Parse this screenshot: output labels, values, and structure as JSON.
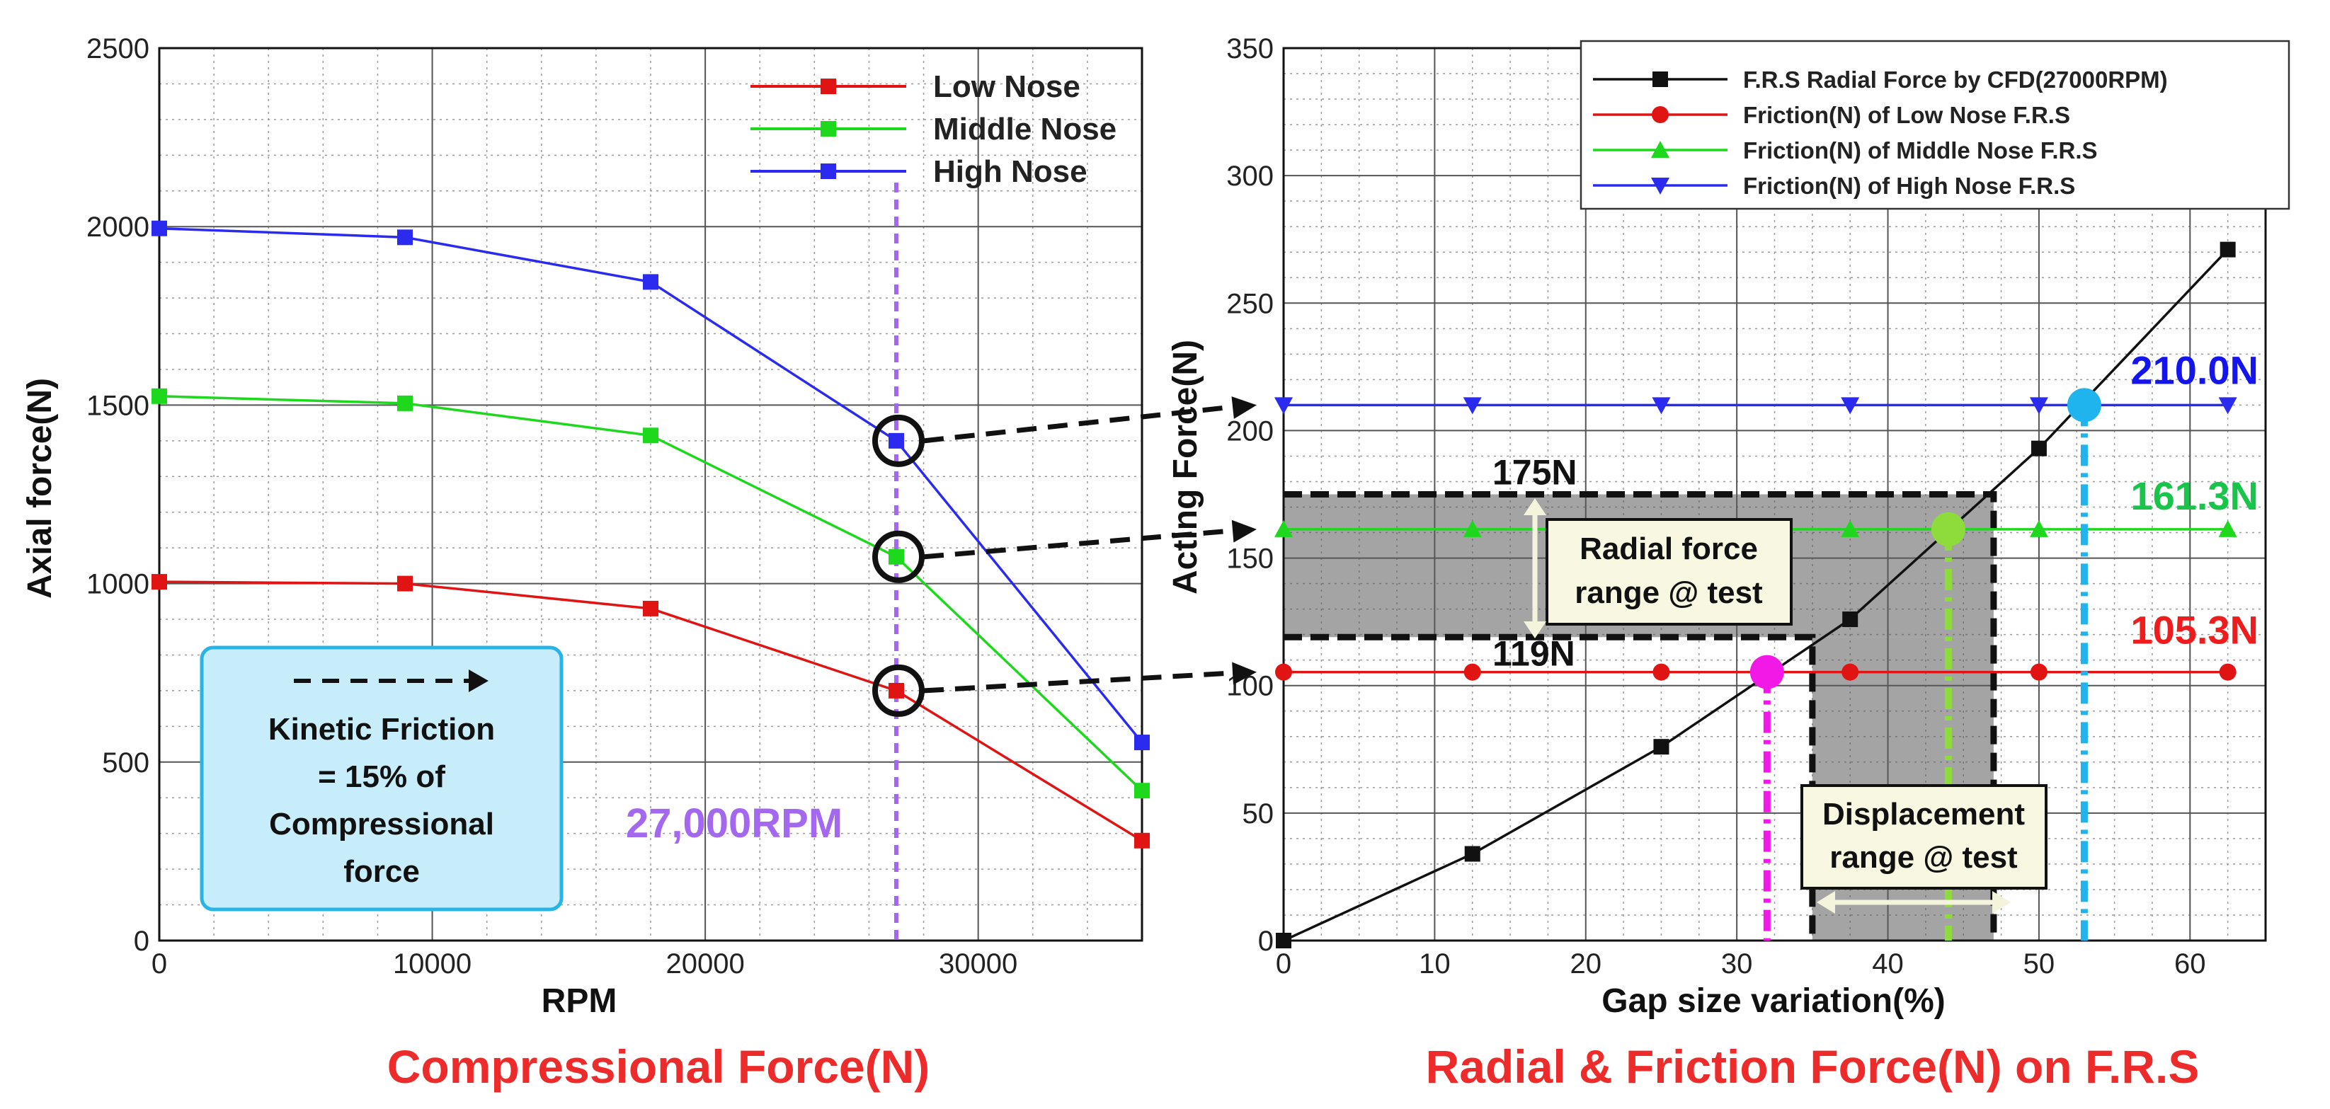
{
  "chart_data": [
    {
      "type": "line",
      "title": "Compressional Force(N)",
      "xlabel": "RPM",
      "ylabel": "Axial force(N)",
      "xlim": [
        0,
        36000
      ],
      "ylim": [
        0,
        2500
      ],
      "xticks": [
        0,
        10000,
        20000,
        30000
      ],
      "yticks": [
        0,
        500,
        1000,
        1500,
        2000,
        2500
      ],
      "grid": true,
      "legend_position": "top-right",
      "x": [
        0,
        9000,
        18000,
        27000,
        36000
      ],
      "series": [
        {
          "name": "Low Nose",
          "color": "#e11414",
          "marker": "square",
          "values": [
            1005,
            1000,
            930,
            700,
            280
          ]
        },
        {
          "name": "Middle Nose",
          "color": "#1ed81e",
          "marker": "square",
          "values": [
            1525,
            1505,
            1415,
            1075,
            420
          ]
        },
        {
          "name": "High Nose",
          "color": "#2b2bf0",
          "marker": "square",
          "values": [
            1995,
            1970,
            1845,
            1400,
            555
          ]
        }
      ],
      "annotations": {
        "rpm_marker": {
          "x": 27000,
          "label": "27,000RPM",
          "color": "#a468f0"
        },
        "friction_box": {
          "lines": [
            "Kinetic Friction",
            "= 15% of",
            "Compressional",
            "force"
          ]
        }
      }
    },
    {
      "type": "line",
      "title": "Radial & Friction Force(N) on F.R.S",
      "xlabel": "Gap size variation(%)",
      "ylabel": "Acting Force(N)",
      "xlim": [
        0,
        65
      ],
      "ylim": [
        0,
        350
      ],
      "xticks": [
        0,
        10,
        20,
        30,
        40,
        50,
        60
      ],
      "yticks": [
        0,
        50,
        100,
        150,
        200,
        250,
        300,
        350
      ],
      "grid": true,
      "legend_position": "top-right",
      "x": [
        0,
        12.5,
        25,
        37.5,
        50,
        62.5
      ],
      "series": [
        {
          "name": "F.R.S Radial Force by CFD(27000RPM)",
          "color": "#111111",
          "marker": "square",
          "values": [
            0,
            34,
            76,
            126,
            193,
            271
          ]
        },
        {
          "name": "Friction(N) of Low Nose F.R.S",
          "color": "#e11414",
          "marker": "circle",
          "values": [
            105.3,
            105.3,
            105.3,
            105.3,
            105.3,
            105.3
          ]
        },
        {
          "name": "Friction(N) of Middle Nose F.R.S",
          "color": "#1ed81e",
          "marker": "triangle-up",
          "values": [
            161.3,
            161.3,
            161.3,
            161.3,
            161.3,
            161.3
          ]
        },
        {
          "name": "Friction(N) of High Nose F.R.S",
          "color": "#2b2bf0",
          "marker": "triangle-down",
          "values": [
            210.0,
            210.0,
            210.0,
            210.0,
            210.0,
            210.0
          ]
        }
      ],
      "annotations": {
        "radial_range": {
          "low": 119,
          "high": 175,
          "low_label": "119N",
          "high_label": "175N",
          "lines": [
            "Radial force",
            "range @ test"
          ]
        },
        "displacement_range": {
          "low": 35,
          "high": 47,
          "lines": [
            "Displacement",
            "range @ test"
          ]
        },
        "intersections": [
          {
            "x": 32.0,
            "y": 105.3,
            "color": "#f218e6",
            "label": "105.3N",
            "label_color": "#ee1c1c"
          },
          {
            "x": 44.0,
            "y": 161.3,
            "color": "#8edc3c",
            "label": "161.3N",
            "label_color": "#19c44a"
          },
          {
            "x": 53.0,
            "y": 210.0,
            "color": "#1fb4ee",
            "label": "210.0N",
            "label_color": "#1414ee"
          }
        ]
      }
    }
  ]
}
